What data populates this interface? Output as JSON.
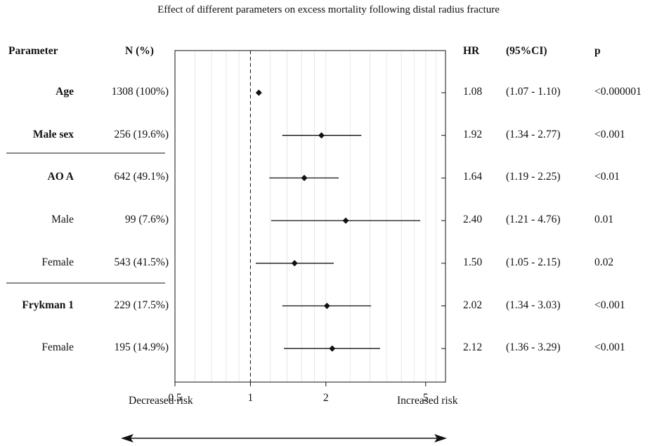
{
  "chart_data": {
    "type": "forest",
    "title": "Effect of different parameters on excess mortality following distal radius fracture",
    "headers": {
      "parameter": "Parameter",
      "n": "N (%)",
      "hr": "HR",
      "ci": "(95%CI)",
      "p": "p"
    },
    "rows": [
      {
        "parameter": "Age",
        "bold": true,
        "n": "1308 (100%)",
        "hr": 1.08,
        "lo": 1.07,
        "hi": 1.1,
        "hr_text": "1.08",
        "ci_text": "(1.07 - 1.10)",
        "p": "<0.000001"
      },
      {
        "parameter": "Male sex",
        "bold": true,
        "n": "256 (19.6%)",
        "hr": 1.92,
        "lo": 1.34,
        "hi": 2.77,
        "hr_text": "1.92",
        "ci_text": "(1.34 - 2.77)",
        "p": "<0.001"
      },
      {
        "parameter": "AO A",
        "bold": true,
        "n": "642 (49.1%)",
        "hr": 1.64,
        "lo": 1.19,
        "hi": 2.25,
        "hr_text": "1.64",
        "ci_text": "(1.19 - 2.25)",
        "p": "<0.01"
      },
      {
        "parameter": "Male",
        "bold": false,
        "n": "99 (7.6%)",
        "hr": 2.4,
        "lo": 1.21,
        "hi": 4.76,
        "hr_text": "2.40",
        "ci_text": "(1.21 - 4.76)",
        "p": "0.01"
      },
      {
        "parameter": "Female",
        "bold": false,
        "n": "543 (41.5%)",
        "hr": 1.5,
        "lo": 1.05,
        "hi": 2.15,
        "hr_text": "1.50",
        "ci_text": "(1.05 - 2.15)",
        "p": "0.02"
      },
      {
        "parameter": "Frykman 1",
        "bold": true,
        "n": "229 (17.5%)",
        "hr": 2.02,
        "lo": 1.34,
        "hi": 3.03,
        "hr_text": "2.02",
        "ci_text": "(1.34 - 3.03)",
        "p": "<0.001"
      },
      {
        "parameter": "Female",
        "bold": false,
        "n": "195 (14.9%)",
        "hr": 2.12,
        "lo": 1.36,
        "hi": 3.29,
        "hr_text": "2.12",
        "ci_text": "(1.36 - 3.29)",
        "p": "<0.001"
      }
    ],
    "x_scale": "log",
    "xlim": [
      0.5,
      6
    ],
    "x_ticks": [
      "0.5",
      "1",
      "2",
      "5"
    ],
    "reference_line": 1,
    "grid": true,
    "left_label": "Decreased risk",
    "right_label": "Increased risk"
  }
}
